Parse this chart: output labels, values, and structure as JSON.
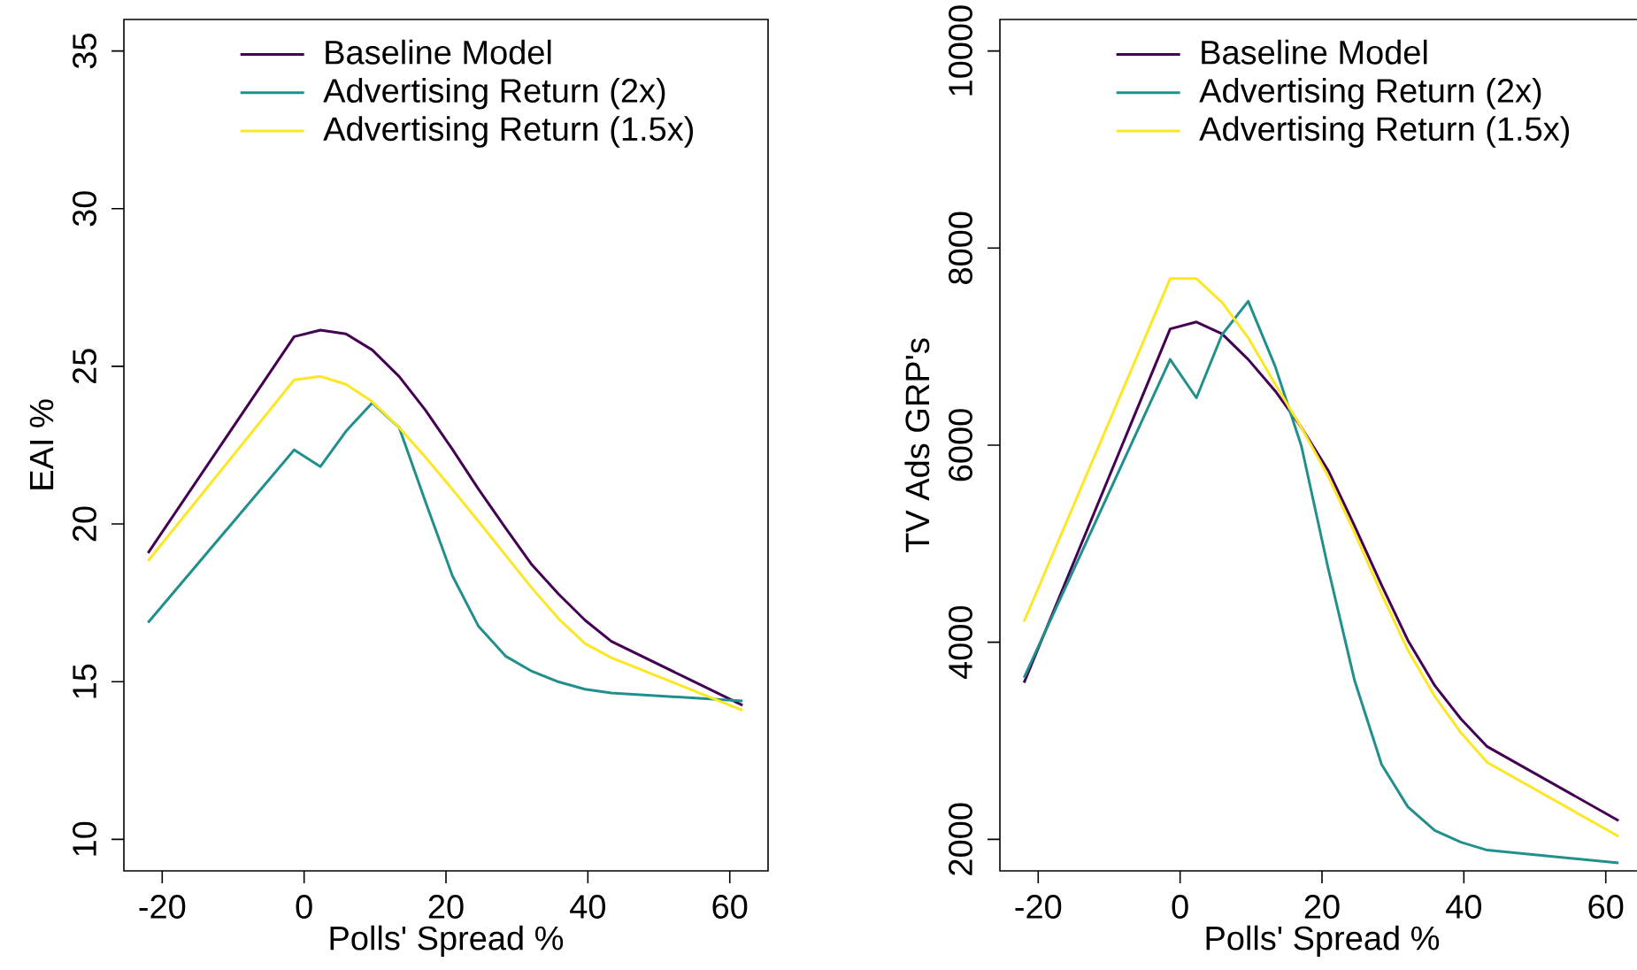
{
  "chart_data": [
    {
      "type": "line",
      "xlabel": "Polls' Spread %",
      "ylabel": "EAI %",
      "x": [
        -22,
        -1.4,
        2.3,
        5.9,
        9.6,
        13.4,
        17.1,
        20.9,
        24.6,
        28.4,
        32.1,
        35.9,
        39.6,
        43.3,
        61.8
      ],
      "series": [
        {
          "name": "Baseline Model",
          "color": "#440154",
          "values": [
            19.08,
            25.94,
            26.15,
            26.03,
            25.52,
            24.68,
            23.61,
            22.37,
            21.1,
            19.87,
            18.71,
            17.77,
            16.95,
            16.28,
            14.25
          ]
        },
        {
          "name": "Advertising Return (2x)",
          "color": "#21908c",
          "values": [
            16.87,
            22.35,
            21.82,
            22.94,
            23.84,
            23.06,
            20.71,
            18.36,
            16.75,
            15.81,
            15.33,
            14.99,
            14.76,
            14.64,
            14.39
          ]
        },
        {
          "name": "Advertising Return (1.5x)",
          "color": "#fde725",
          "values": [
            18.83,
            24.57,
            24.68,
            24.43,
            23.88,
            23.06,
            22.12,
            21.1,
            20.08,
            19.01,
            17.97,
            16.99,
            16.21,
            15.76,
            14.09
          ]
        }
      ],
      "xlim": [
        -25.4,
        65.4
      ],
      "ylim": [
        9,
        36
      ],
      "xticks": [
        -20,
        0,
        20,
        40,
        60
      ],
      "yticks": [
        10,
        15,
        20,
        25,
        30,
        35
      ],
      "legend": "top"
    },
    {
      "type": "line",
      "xlabel": "Polls' Spread %",
      "ylabel": "TV Ads GRP's",
      "x": [
        -22,
        -1.4,
        2.3,
        5.9,
        9.6,
        13.4,
        17.1,
        20.9,
        24.6,
        28.4,
        32.1,
        35.9,
        39.6,
        43.3,
        61.8
      ],
      "series": [
        {
          "name": "Baseline Model",
          "color": "#440154",
          "values": [
            3590,
            7180,
            7250,
            7130,
            6870,
            6550,
            6180,
            5740,
            5180,
            4580,
            4020,
            3560,
            3220,
            2940,
            2190
          ]
        },
        {
          "name": "Advertising Return (2x)",
          "color": "#21908c",
          "values": [
            3640,
            6870,
            6480,
            7120,
            7460,
            6800,
            5990,
            4740,
            3610,
            2760,
            2330,
            2090,
            1970,
            1890,
            1760
          ]
        },
        {
          "name": "Advertising Return (1.5x)",
          "color": "#fde725",
          "values": [
            4210,
            7690,
            7690,
            7450,
            7090,
            6620,
            6180,
            5680,
            5110,
            4490,
            3920,
            3450,
            3080,
            2780,
            2030
          ]
        }
      ],
      "xlim": [
        -25.4,
        65.4
      ],
      "ylim": [
        1680,
        10320
      ],
      "xticks": [
        -20,
        0,
        20,
        40,
        60
      ],
      "yticks": [
        2000,
        4000,
        6000,
        8000,
        10000
      ],
      "legend": "top"
    }
  ]
}
